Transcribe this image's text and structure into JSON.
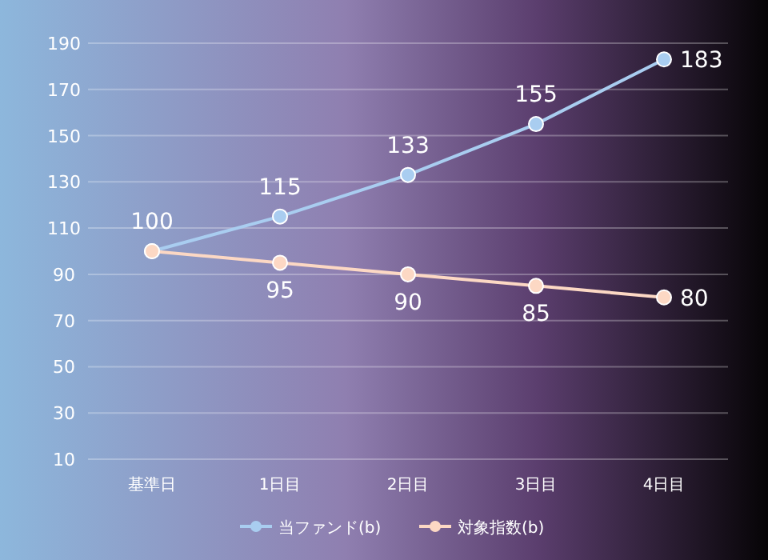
{
  "chart_data": {
    "type": "line",
    "categories": [
      "基準日",
      "1日目",
      "2日目",
      "3日目",
      "4日目"
    ],
    "series": [
      {
        "name": "当ファンド(b)",
        "color": "#a9cdf0",
        "values": [
          100,
          115,
          133,
          155,
          183
        ],
        "value_labels": [
          "100",
          "115",
          "133",
          "155",
          "183"
        ]
      },
      {
        "name": "対象指数(b)",
        "color": "#fcd8c4",
        "values": [
          100,
          95,
          90,
          85,
          80
        ],
        "value_labels": [
          null,
          "95",
          "90",
          "85",
          "80"
        ]
      }
    ],
    "ylim": [
      10,
      190
    ],
    "yticks": [
      10,
      30,
      50,
      70,
      90,
      110,
      130,
      150,
      170,
      190
    ],
    "grid": "y",
    "legend": "bottom",
    "marker": "circle",
    "line_style": "solid"
  }
}
